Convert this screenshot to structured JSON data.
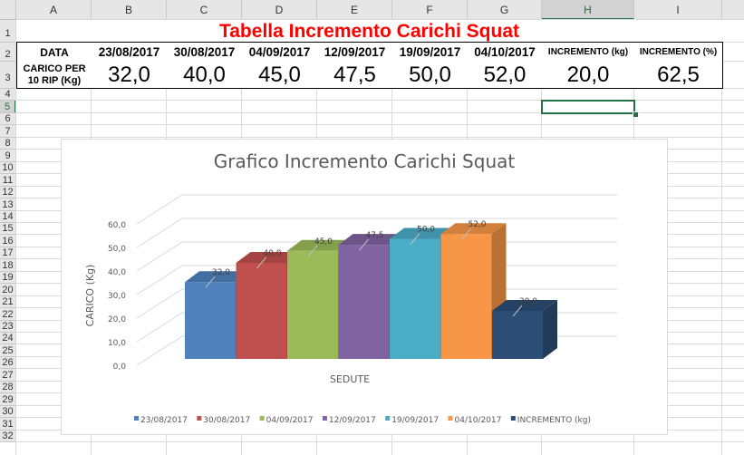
{
  "columns": [
    "A",
    "B",
    "C",
    "D",
    "E",
    "F",
    "G",
    "H",
    "I"
  ],
  "rows": [
    "1",
    "2",
    "3",
    "4",
    "5",
    "6",
    "7",
    "8",
    "9",
    "10",
    "11",
    "12",
    "13",
    "14",
    "15",
    "16",
    "17",
    "18",
    "19",
    "20",
    "21",
    "22",
    "23",
    "24",
    "25",
    "26",
    "27",
    "28",
    "29",
    "30",
    "31",
    "32"
  ],
  "sheet": {
    "title": "Tabella Incremento Carichi Squat",
    "row2": [
      "DATA",
      "23/08/2017",
      "30/08/2017",
      "04/09/2017",
      "12/09/2017",
      "19/09/2017",
      "04/10/2017",
      "INCREMENTO (kg)",
      "INCREMENTO (%)"
    ],
    "row3_label_line1": "CARICO PER",
    "row3_label_line2": "10 RIP (Kg)",
    "row3": [
      "32,0",
      "40,0",
      "45,0",
      "47,5",
      "50,0",
      "52,0",
      "20,0",
      "62,5"
    ],
    "selected_cell": "H5"
  },
  "chart_data": {
    "type": "bar",
    "title": "Grafico Incremento Carichi Squat",
    "xlabel": "SEDUTE",
    "ylabel": "CARICO (Kg)",
    "ylim": [
      0,
      60
    ],
    "yticks": [
      "0,0",
      "10,0",
      "20,0",
      "30,0",
      "40,0",
      "50,0",
      "60,0"
    ],
    "grid": true,
    "legend": "bottom",
    "style": "3d-column",
    "series": [
      {
        "name": "23/08/2017",
        "value": 32.0,
        "label": "32,0",
        "color": "#4f81bd"
      },
      {
        "name": "30/08/2017",
        "value": 40.0,
        "label": "40,0",
        "color": "#c0504d"
      },
      {
        "name": "04/09/2017",
        "value": 45.0,
        "label": "45,0",
        "color": "#9bbb59"
      },
      {
        "name": "12/09/2017",
        "value": 47.5,
        "label": "47,5",
        "color": "#8064a2"
      },
      {
        "name": "19/09/2017",
        "value": 50.0,
        "label": "50,0",
        "color": "#4bacc6"
      },
      {
        "name": "04/10/2017",
        "value": 52.0,
        "label": "52,0",
        "color": "#f79646"
      },
      {
        "name": "INCREMENTO (kg)",
        "value": 20.0,
        "label": "20,0",
        "color": "#2c4d75"
      }
    ]
  }
}
